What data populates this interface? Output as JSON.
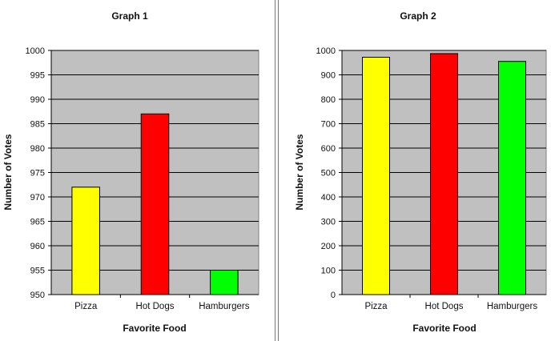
{
  "chart_data": [
    {
      "type": "bar",
      "title": "Graph 1",
      "xlabel": "Favorite Food",
      "ylabel": "Number of Votes",
      "categories": [
        "Pizza",
        "Hot Dogs",
        "Hamburgers"
      ],
      "values": [
        972,
        987,
        955
      ],
      "colors": [
        "#ffff00",
        "#ff0000",
        "#00ff00"
      ],
      "ylim": [
        950,
        1000
      ],
      "yticks": [
        "950",
        "955",
        "960",
        "965",
        "970",
        "975",
        "980",
        "985",
        "990",
        "995",
        "1000"
      ],
      "plot_background": "#c0c0c0",
      "grid": true
    },
    {
      "type": "bar",
      "title": "Graph 2",
      "xlabel": "Favorite Food",
      "ylabel": "Number of Votes",
      "categories": [
        "Pizza",
        "Hot Dogs",
        "Hamburgers"
      ],
      "values": [
        972,
        987,
        955
      ],
      "colors": [
        "#ffff00",
        "#ff0000",
        "#00ff00"
      ],
      "ylim": [
        0,
        1000
      ],
      "yticks": [
        "0",
        "100",
        "200",
        "300",
        "400",
        "500",
        "600",
        "700",
        "800",
        "900",
        "1000"
      ],
      "plot_background": "#c0c0c0",
      "grid": true
    }
  ]
}
